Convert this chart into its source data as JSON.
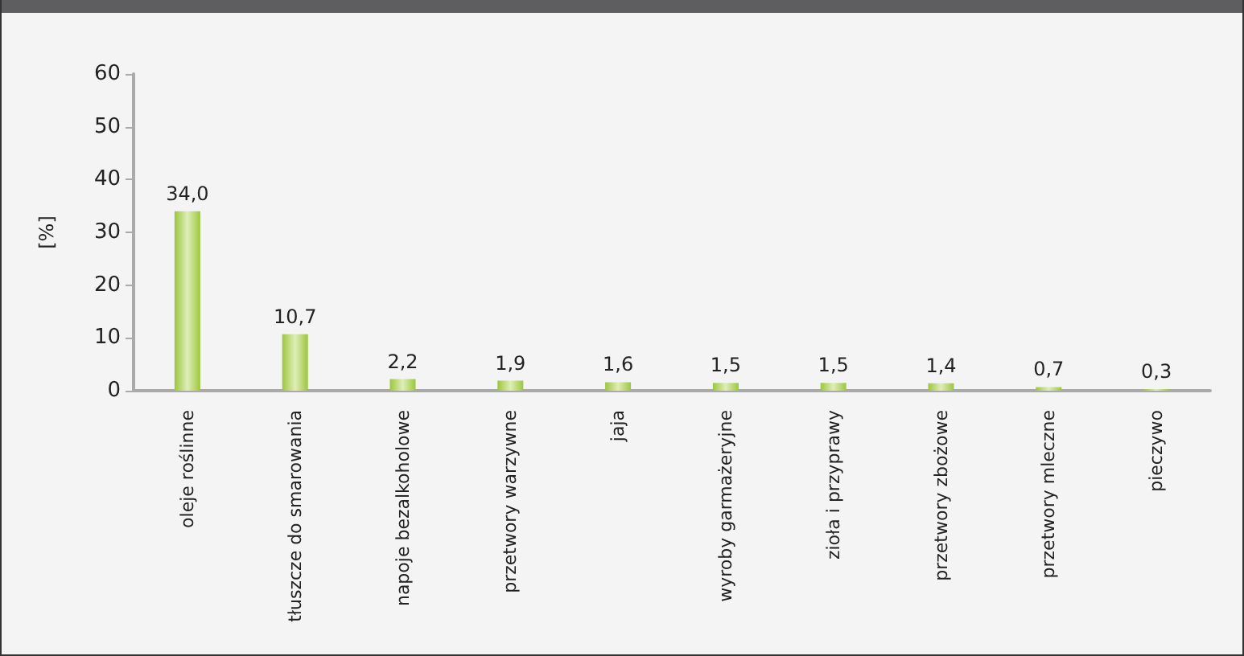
{
  "chart_data": {
    "type": "bar",
    "ylabel": "[%]",
    "categories": [
      "oleje roślinne",
      "tłuszcze do smarowania",
      "napoje bezalkoholowe",
      "przetwory warzywne",
      "jaja",
      "wyroby garmażeryjne",
      "zioła i przyprawy",
      "przetwory zbożowe",
      "przetwory mleczne",
      "pieczywo"
    ],
    "values": [
      34.0,
      10.7,
      2.2,
      1.9,
      1.6,
      1.5,
      1.5,
      1.4,
      0.7,
      0.3
    ],
    "value_labels": [
      "34,0",
      "10,7",
      "2,2",
      "1,9",
      "1,6",
      "1,5",
      "1,5",
      "1,4",
      "0,7",
      "0,3"
    ],
    "color": "#9cc63e",
    "ylim": [
      0,
      60
    ],
    "yticks": [
      0,
      10,
      20,
      30,
      40,
      50,
      60
    ],
    "grid": false
  }
}
